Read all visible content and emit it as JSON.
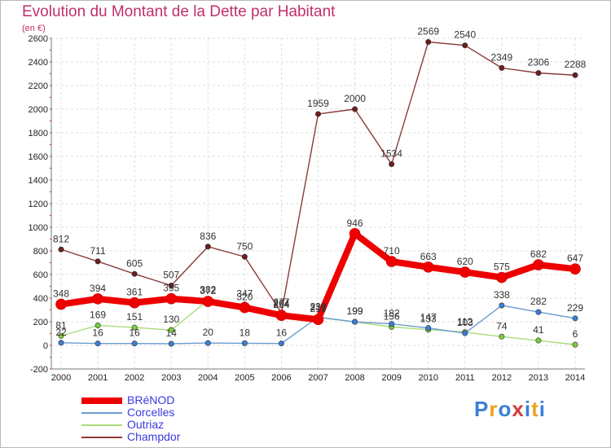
{
  "header": {
    "title": "Evolution du Montant de la Dette par Habitant",
    "subtitle": "(en €)"
  },
  "logo": {
    "text": "Proxiti",
    "colors": [
      "#3a7fd5",
      "#f0a020",
      "#3a7fd5",
      "#d23c3c",
      "#3a7fd5",
      "#f0a020",
      "#3a7fd5"
    ]
  },
  "chart_data": {
    "type": "line",
    "title": "Evolution du Montant de la Dette par Habitant",
    "subtitle": "(en €)",
    "x": [
      2000,
      2001,
      2002,
      2003,
      2004,
      2005,
      2006,
      2007,
      2008,
      2009,
      2010,
      2011,
      2012,
      2013,
      2014
    ],
    "ylim": [
      -200,
      2600
    ],
    "yticks": [
      -200,
      0,
      200,
      400,
      600,
      800,
      1000,
      1200,
      1400,
      1600,
      1800,
      2000,
      2200,
      2400,
      2600
    ],
    "grid": true,
    "legend": "bottom-left",
    "series": [
      {
        "name": "BRéNOD",
        "color": "#ee0000",
        "marker": "#ee0000",
        "width": 8,
        "values": [
          348,
          394,
          361,
          395,
          372,
          320,
          254,
          219,
          946,
          710,
          663,
          620,
          575,
          682,
          647
        ]
      },
      {
        "name": "Corcelles",
        "color": "#6a9bd0",
        "marker": "#3a7fd5",
        "width": 1.4,
        "values": [
          22,
          16,
          16,
          14,
          20,
          18,
          16,
          239,
          199,
          182,
          147,
          103,
          338,
          282,
          229
        ]
      },
      {
        "name": "Outriaz",
        "color": "#a8dc78",
        "marker": "#7acc3a",
        "width": 1.4,
        "values": [
          81,
          169,
          151,
          130,
          382,
          347,
          264,
          236,
          199,
          156,
          133,
          112,
          74,
          41,
          6
        ]
      },
      {
        "name": "Champdor",
        "color": "#8b3a3a",
        "marker": "#6b1e1e",
        "width": 1.4,
        "values": [
          812,
          711,
          605,
          507,
          836,
          750,
          277,
          1959,
          2000,
          1534,
          2569,
          2540,
          2349,
          2306,
          2288
        ]
      }
    ]
  }
}
